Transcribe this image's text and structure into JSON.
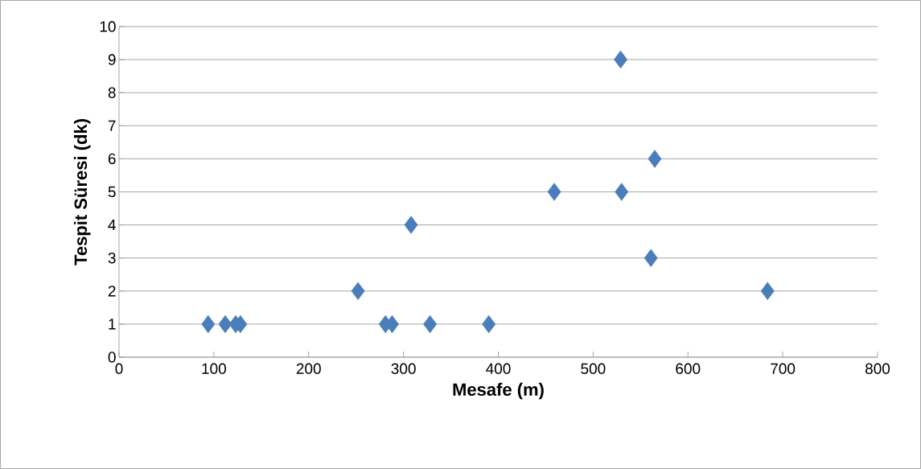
{
  "chart_data": {
    "type": "scatter",
    "xlabel": "Mesafe (m)",
    "ylabel": "Tespit Süresi (dk)",
    "x": [
      94,
      112,
      123,
      128,
      252,
      281,
      288,
      308,
      328,
      390,
      459,
      529,
      530,
      561,
      565,
      684
    ],
    "series": [
      {
        "color": "#4a7ebb",
        "values": [
          1,
          1,
          1,
          1,
          2,
          1,
          1,
          4,
          1,
          1,
          5,
          9,
          5,
          3,
          6,
          2
        ]
      }
    ],
    "xlim": [
      0,
      800
    ],
    "xticks": [
      0,
      100,
      200,
      300,
      400,
      500,
      600,
      700,
      800
    ],
    "ylim": [
      0,
      10
    ],
    "yticks": [
      0,
      1,
      2,
      3,
      4,
      5,
      6,
      7,
      8,
      9,
      10
    ],
    "grid": "y",
    "marker": "diamond"
  }
}
